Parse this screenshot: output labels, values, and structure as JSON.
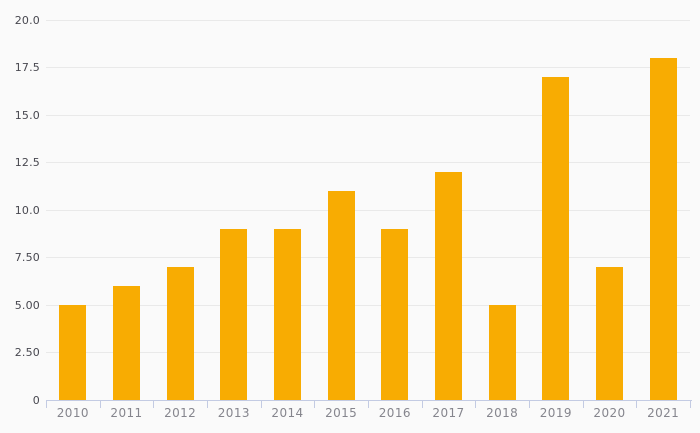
{
  "chart_data": {
    "type": "bar",
    "title": "",
    "categories": [
      "2010",
      "2011",
      "2012",
      "2013",
      "2014",
      "2015",
      "2016",
      "2017",
      "2018",
      "2019",
      "2020",
      "2021"
    ],
    "values": [
      5,
      6,
      7,
      9,
      9,
      11,
      9,
      12,
      5,
      17,
      7,
      18
    ],
    "xlabel": "",
    "ylabel": "",
    "ylim": [
      0,
      20
    ],
    "y_tick_step": 2.5,
    "y_tick_labels": [
      "0",
      "2.50",
      "5.00",
      "7.50",
      "10.0",
      "12.5",
      "15.0",
      "17.5",
      "20.0"
    ],
    "grid": true,
    "legend": false,
    "bar_color": "#F8AC02"
  },
  "colors": {
    "background": "#FAFAFA",
    "gridline": "#E9E9E9",
    "axis_line": "#C3CBE3",
    "y_label_text": "#47474F",
    "x_label_text": "#85858D"
  }
}
